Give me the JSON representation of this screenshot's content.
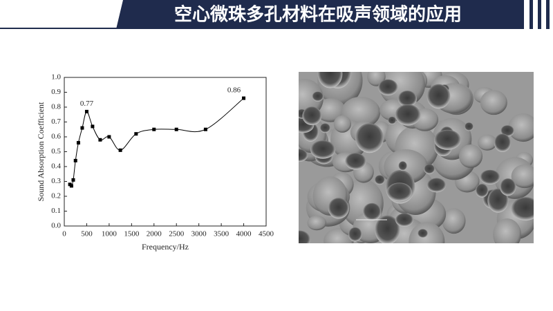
{
  "header": {
    "title": "空心微珠多孔材料在吸声领域的应用"
  },
  "chart_data": {
    "type": "line",
    "x_label": "Frequency/Hz",
    "y_label": "Sound Absorption Coefficient",
    "x": [
      125,
      160,
      200,
      250,
      315,
      400,
      500,
      630,
      800,
      1000,
      1250,
      1600,
      2000,
      2500,
      3150,
      4000
    ],
    "values": [
      0.28,
      0.27,
      0.31,
      0.44,
      0.56,
      0.66,
      0.77,
      0.67,
      0.58,
      0.6,
      0.51,
      0.62,
      0.65,
      0.65,
      0.65,
      0.86
    ],
    "value_labels": [
      null,
      null,
      null,
      null,
      null,
      null,
      "0.77",
      null,
      null,
      null,
      null,
      null,
      null,
      null,
      null,
      "0.86"
    ],
    "color": "#000000",
    "xlim": [
      0,
      4500
    ],
    "xticks": [
      0,
      500,
      1000,
      1500,
      2000,
      2500,
      3000,
      3500,
      4000,
      4500
    ],
    "ylim": [
      0,
      1.0
    ],
    "yticks": [
      {
        "value": 0,
        "label": "0.0"
      },
      0.1,
      0.2,
      0.3,
      0.4,
      0.5,
      0.6,
      0.7,
      0.8,
      0.9,
      {
        "value": 1.0,
        "label": "1.0"
      }
    ],
    "grid": false
  }
}
